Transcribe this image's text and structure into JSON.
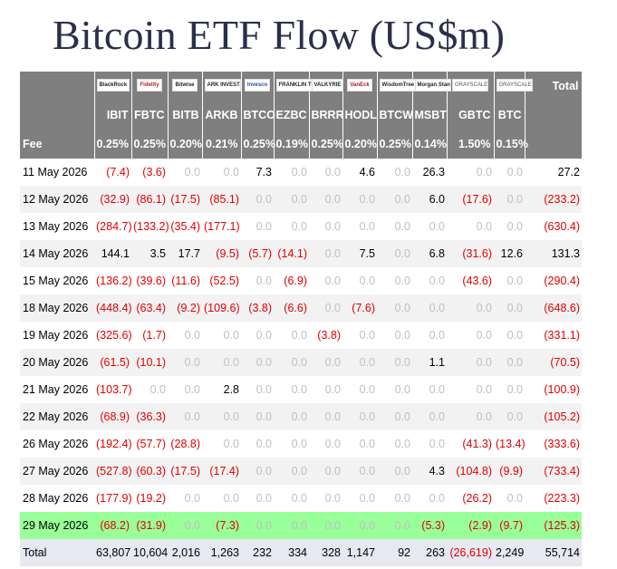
{
  "title": "Bitcoin ETF Flow (US$m)",
  "columns": [
    {
      "logo": "BlackRock",
      "code": "IBIT",
      "fee": "0.25%"
    },
    {
      "logo": "Fidelity",
      "code": "FBTC",
      "fee": "0.25%"
    },
    {
      "logo": "Bitwise",
      "code": "BITB",
      "fee": "0.20%"
    },
    {
      "logo": "ARK INVEST",
      "code": "ARKB",
      "fee": "0.21%"
    },
    {
      "logo": "Invesco",
      "code": "BTCO",
      "fee": "0.25%"
    },
    {
      "logo": "FRANKLIN TEMPLETON",
      "code": "EZBC",
      "fee": "0.19%"
    },
    {
      "logo": "VALKYRIE",
      "code": "BRRR",
      "fee": "0.25%"
    },
    {
      "logo": "VanEck",
      "code": "HODL",
      "fee": "0.20%"
    },
    {
      "logo": "WisdomTree",
      "code": "BTCW",
      "fee": "0.25%"
    },
    {
      "logo": "Morgan Stanley",
      "code": "MSBT",
      "fee": "0.14%"
    },
    {
      "logo": "GRAYSCALE",
      "code": "GBTC",
      "fee": "1.50%"
    },
    {
      "logo": "GRAYSCALE",
      "code": "BTC",
      "fee": "0.15%"
    }
  ],
  "total_label": "Total",
  "fee_label": "Fee",
  "rows": [
    {
      "date": "11 May 2026",
      "values": [
        "(7.4)",
        "(3.6)",
        "0.0",
        "0.0",
        "7.3",
        "0.0",
        "0.0",
        "4.6",
        "0.0",
        "26.3",
        "0.0",
        "0.0",
        "27.2"
      ]
    },
    {
      "date": "12 May 2026",
      "values": [
        "(32.9)",
        "(86.1)",
        "(17.5)",
        "(85.1)",
        "0.0",
        "0.0",
        "0.0",
        "0.0",
        "0.0",
        "6.0",
        "(17.6)",
        "0.0",
        "(233.2)"
      ]
    },
    {
      "date": "13 May 2026",
      "values": [
        "(284.7)",
        "(133.2)",
        "(35.4)",
        "(177.1)",
        "0.0",
        "0.0",
        "0.0",
        "0.0",
        "0.0",
        "0.0",
        "0.0",
        "0.0",
        "(630.4)"
      ]
    },
    {
      "date": "14 May 2026",
      "values": [
        "144.1",
        "3.5",
        "17.7",
        "(9.5)",
        "(5.7)",
        "(14.1)",
        "0.0",
        "7.5",
        "0.0",
        "6.8",
        "(31.6)",
        "12.6",
        "131.3"
      ]
    },
    {
      "date": "15 May 2026",
      "values": [
        "(136.2)",
        "(39.6)",
        "(11.6)",
        "(52.5)",
        "0.0",
        "(6.9)",
        "0.0",
        "0.0",
        "0.0",
        "0.0",
        "(43.6)",
        "0.0",
        "(290.4)"
      ]
    },
    {
      "date": "18 May 2026",
      "values": [
        "(448.4)",
        "(63.4)",
        "(9.2)",
        "(109.6)",
        "(3.8)",
        "(6.6)",
        "0.0",
        "(7.6)",
        "0.0",
        "0.0",
        "0.0",
        "0.0",
        "(648.6)"
      ]
    },
    {
      "date": "19 May 2026",
      "values": [
        "(325.6)",
        "(1.7)",
        "0.0",
        "0.0",
        "0.0",
        "0.0",
        "(3.8)",
        "0.0",
        "0.0",
        "0.0",
        "0.0",
        "0.0",
        "(331.1)"
      ]
    },
    {
      "date": "20 May 2026",
      "values": [
        "(61.5)",
        "(10.1)",
        "0.0",
        "0.0",
        "0.0",
        "0.0",
        "0.0",
        "0.0",
        "0.0",
        "1.1",
        "0.0",
        "0.0",
        "(70.5)"
      ]
    },
    {
      "date": "21 May 2026",
      "values": [
        "(103.7)",
        "0.0",
        "0.0",
        "2.8",
        "0.0",
        "0.0",
        "0.0",
        "0.0",
        "0.0",
        "0.0",
        "0.0",
        "0.0",
        "(100.9)"
      ]
    },
    {
      "date": "22 May 2026",
      "values": [
        "(68.9)",
        "(36.3)",
        "0.0",
        "0.0",
        "0.0",
        "0.0",
        "0.0",
        "0.0",
        "0.0",
        "0.0",
        "0.0",
        "0.0",
        "(105.2)"
      ]
    },
    {
      "date": "26 May 2026",
      "values": [
        "(192.4)",
        "(57.7)",
        "(28.8)",
        "0.0",
        "0.0",
        "0.0",
        "0.0",
        "0.0",
        "0.0",
        "0.0",
        "(41.3)",
        "(13.4)",
        "(333.6)"
      ]
    },
    {
      "date": "27 May 2026",
      "values": [
        "(527.8)",
        "(60.3)",
        "(17.5)",
        "(17.4)",
        "0.0",
        "0.0",
        "0.0",
        "0.0",
        "0.0",
        "4.3",
        "(104.8)",
        "(9.9)",
        "(733.4)"
      ]
    },
    {
      "date": "28 May 2026",
      "values": [
        "(177.9)",
        "(19.2)",
        "0.0",
        "0.0",
        "0.0",
        "0.0",
        "0.0",
        "0.0",
        "0.0",
        "0.0",
        "(26.2)",
        "0.0",
        "(223.3)"
      ]
    },
    {
      "date": "29 May 2026",
      "highlight": true,
      "values": [
        "(68.2)",
        "(31.9)",
        "0.0",
        "(7.3)",
        "0.0",
        "0.0",
        "0.0",
        "0.0",
        "0.0",
        "(5.3)",
        "(2.9)",
        "(9.7)",
        "(125.3)"
      ]
    }
  ],
  "totals": {
    "label": "Total",
    "values": [
      "63,807",
      "10,604",
      "2,016",
      "1,263",
      "232",
      "334",
      "328",
      "1,147",
      "92",
      "263",
      "(26,619)",
      "2,249",
      "55,714"
    ]
  },
  "colors": {
    "header_bg": "#7f7f7f",
    "negative": "#e00000",
    "zero": "#c0c0c0",
    "highlight_row": "#99ff99",
    "total_row": "#e6e8f2",
    "title": "#2b2f4a"
  }
}
